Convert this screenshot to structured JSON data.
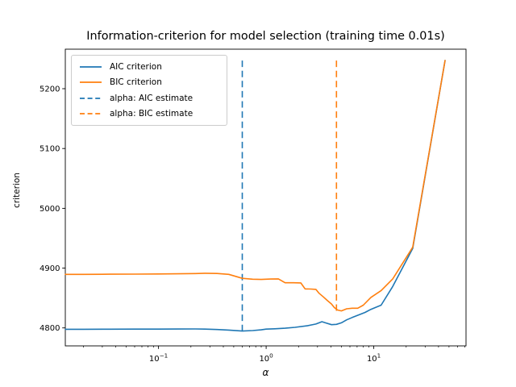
{
  "figure": {
    "title": "Information-criterion for model selection (training time 0.01s)",
    "xlabel": "α",
    "ylabel": "criterion",
    "background_color": "#ffffff",
    "spine_color": "#000000"
  },
  "legend": {
    "items": [
      {
        "label": "AIC criterion",
        "color": "#1f77b4",
        "style": "solid"
      },
      {
        "label": "BIC criterion",
        "color": "#ff7f0e",
        "style": "solid"
      },
      {
        "label": "alpha: AIC estimate",
        "color": "#1f77b4",
        "style": "dashed"
      },
      {
        "label": "alpha: BIC estimate",
        "color": "#ff7f0e",
        "style": "dashed"
      }
    ]
  },
  "chart_data": {
    "type": "line",
    "title": "Information-criterion for model selection (training time 0.01s)",
    "xlabel": "α",
    "ylabel": "criterion",
    "x_scale": "log",
    "xlim": [
      0.0136,
      72
    ],
    "ylim": [
      4770,
      5266
    ],
    "grid": false,
    "legend_position": "upper left",
    "x_major_ticks": [
      {
        "value": 0.1,
        "base": "10",
        "exp": "−1"
      },
      {
        "value": 1,
        "base": "10",
        "exp": "0"
      },
      {
        "value": 10,
        "base": "10",
        "exp": "1"
      }
    ],
    "y_ticks": [
      4800,
      4900,
      5000,
      5100,
      5200
    ],
    "series": [
      {
        "name": "AIC criterion",
        "color": "#1f77b4",
        "style": "solid",
        "x": [
          0.0136,
          0.02,
          0.035,
          0.06,
          0.1,
          0.15,
          0.22,
          0.27,
          0.35,
          0.45,
          0.6,
          0.75,
          0.9,
          1.0,
          1.2,
          1.5,
          1.85,
          2.4,
          2.9,
          3.3,
          3.6,
          4.05,
          4.5,
          5.0,
          5.6,
          6.3,
          7.2,
          8.3,
          9.4,
          11.7,
          15.0,
          23,
          46
        ],
        "y": [
          4797.8,
          4797.8,
          4797.9,
          4798.0,
          4798.1,
          4798.2,
          4798.3,
          4798.1,
          4797.3,
          4796.4,
          4794.8,
          4795.6,
          4796.8,
          4798.0,
          4798.6,
          4799.5,
          4801.0,
          4803.5,
          4806.5,
          4810.4,
          4808.3,
          4805.4,
          4806.0,
          4808.5,
          4813.5,
          4817.5,
          4821.5,
          4826.0,
          4831.0,
          4838.0,
          4869.3,
          4933.0,
          5247.0
        ]
      },
      {
        "name": "BIC criterion",
        "color": "#ff7f0e",
        "style": "solid",
        "x": [
          0.0136,
          0.02,
          0.035,
          0.06,
          0.1,
          0.15,
          0.22,
          0.27,
          0.35,
          0.45,
          0.6,
          0.75,
          0.9,
          1.1,
          1.3,
          1.5,
          1.8,
          2.1,
          2.3,
          2.6,
          2.9,
          3.1,
          3.4,
          3.7,
          4.05,
          4.3,
          4.6,
          5.0,
          5.6,
          6.3,
          7.1,
          8.0,
          9.4,
          11.7,
          15.0,
          23,
          46
        ],
        "y": [
          4889.5,
          4889.6,
          4889.8,
          4890.0,
          4890.2,
          4890.5,
          4890.9,
          4891.4,
          4891.0,
          4889.5,
          4883.0,
          4881.5,
          4881.0,
          4881.8,
          4882.0,
          4875.5,
          4875.5,
          4875.3,
          4865.3,
          4865.0,
          4864.5,
          4858.0,
          4852.0,
          4846.0,
          4840.0,
          4834.0,
          4830.0,
          4828.5,
          4832.0,
          4833.0,
          4833.0,
          4838.0,
          4851.0,
          4862.5,
          4882.0,
          4935.0,
          5247.0
        ]
      }
    ],
    "vlines": [
      {
        "name": "alpha: AIC estimate",
        "color": "#1f77b4",
        "x": 0.6,
        "y_from": 4794.8,
        "y_to": 5247.0
      },
      {
        "name": "alpha: BIC estimate",
        "color": "#ff7f0e",
        "x": 4.5,
        "y_from": 4828.5,
        "y_to": 5247.0
      }
    ]
  }
}
